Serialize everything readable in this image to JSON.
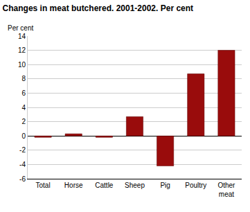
{
  "chart_data": {
    "type": "bar",
    "title": "Changes in meat butchered. 2001-2002. Per cent",
    "ylabel": "Per cent",
    "categories": [
      "Total",
      "Horse",
      "Cattle",
      "Sheep",
      "Pig",
      "Poultry",
      "Other meat"
    ],
    "values": [
      -0.2,
      0.3,
      -0.2,
      2.7,
      -4.2,
      8.7,
      12.0
    ],
    "color": "#990c0c",
    "ylim": [
      -6,
      14
    ],
    "yticks": [
      -6,
      -4,
      -2,
      0,
      2,
      4,
      6,
      8,
      10,
      12,
      14
    ],
    "grid": true
  }
}
